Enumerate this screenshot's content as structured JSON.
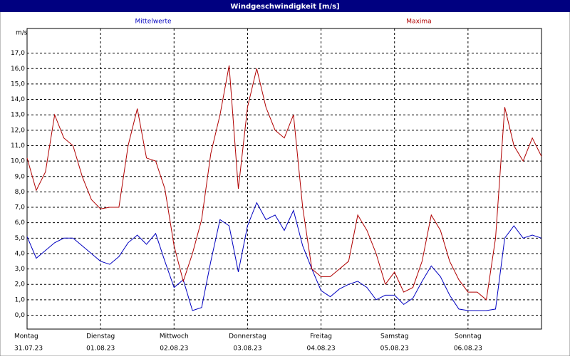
{
  "chart_data": {
    "type": "line",
    "title": "Windgeschwindigkeit [m/s]",
    "y_unit": "m/s",
    "xlim": [
      0,
      7
    ],
    "xticks": [
      {
        "value": 0,
        "label": "Montag",
        "date": "31.07.23"
      },
      {
        "value": 1,
        "label": "Dienstag",
        "date": "01.08.23"
      },
      {
        "value": 2,
        "label": "Mittwoch",
        "date": "02.08.23"
      },
      {
        "value": 3,
        "label": "Donnerstag",
        "date": "03.08.23"
      },
      {
        "value": 4,
        "label": "Freitag",
        "date": "04.08.23"
      },
      {
        "value": 5,
        "label": "Samstag",
        "date": "05.08.23"
      },
      {
        "value": 6,
        "label": "Sonntag",
        "date": "06.08.23"
      }
    ],
    "ylim": [
      -0.9,
      18.6
    ],
    "yticks": [
      {
        "value": 0,
        "label": "0,0"
      },
      {
        "value": 1,
        "label": "1,0"
      },
      {
        "value": 2,
        "label": "2,0"
      },
      {
        "value": 3,
        "label": "3,0"
      },
      {
        "value": 4,
        "label": "4,0"
      },
      {
        "value": 5,
        "label": "5,0"
      },
      {
        "value": 6,
        "label": "6,0"
      },
      {
        "value": 7,
        "label": "7,0"
      },
      {
        "value": 8,
        "label": "8,0"
      },
      {
        "value": 9,
        "label": "9,0"
      },
      {
        "value": 10,
        "label": "10,0"
      },
      {
        "value": 11,
        "label": "11,0"
      },
      {
        "value": 12,
        "label": "12,0"
      },
      {
        "value": 13,
        "label": "13,0"
      },
      {
        "value": 14,
        "label": "14,0"
      },
      {
        "value": 15,
        "label": "15,0"
      },
      {
        "value": 16,
        "label": "16,0"
      },
      {
        "value": 17,
        "label": "17,0"
      }
    ],
    "grid": true,
    "x": [
      0,
      0.125,
      0.25,
      0.375,
      0.5,
      0.625,
      0.75,
      0.875,
      1,
      1.125,
      1.25,
      1.375,
      1.5,
      1.625,
      1.75,
      1.875,
      2,
      2.125,
      2.25,
      2.375,
      2.5,
      2.625,
      2.75,
      2.875,
      3,
      3.125,
      3.25,
      3.375,
      3.5,
      3.625,
      3.75,
      3.875,
      4,
      4.125,
      4.25,
      4.375,
      4.5,
      4.625,
      4.75,
      4.875,
      5,
      5.125,
      5.25,
      5.375,
      5.5,
      5.625,
      5.75,
      5.875,
      6,
      6.125,
      6.25,
      6.375,
      6.5,
      6.625,
      6.75,
      6.875,
      7
    ],
    "series": [
      {
        "name": "Mittelwerte",
        "color": "#0000c0",
        "values": [
          5.1,
          3.7,
          4.2,
          4.7,
          5.0,
          5.0,
          4.5,
          4.0,
          3.5,
          3.3,
          3.8,
          4.7,
          5.2,
          4.6,
          5.3,
          3.5,
          1.8,
          2.3,
          0.3,
          0.5,
          3.5,
          6.2,
          5.8,
          2.8,
          5.8,
          7.3,
          6.2,
          6.5,
          5.5,
          6.8,
          4.5,
          3.0,
          1.6,
          1.2,
          1.7,
          2.0,
          2.2,
          1.8,
          1.0,
          1.3,
          1.3,
          0.7,
          1.1,
          2.2,
          3.2,
          2.5,
          1.3,
          0.4,
          0.3,
          0.3,
          0.3,
          0.4,
          5.0,
          5.8,
          5.0,
          5.2,
          5.0
        ]
      },
      {
        "name": "Maxima",
        "color": "#b00000",
        "values": [
          10.2,
          8.1,
          9.3,
          13.0,
          11.5,
          11.0,
          9.0,
          7.5,
          6.9,
          7.0,
          7.0,
          11.0,
          13.4,
          10.2,
          10.0,
          8.2,
          4.5,
          2.2,
          4.0,
          6.2,
          10.5,
          13.0,
          16.2,
          8.2,
          13.5,
          16.0,
          13.5,
          12.0,
          11.5,
          13.0,
          7.0,
          3.0,
          2.5,
          2.5,
          3.0,
          3.5,
          6.5,
          5.5,
          4.0,
          2.0,
          2.8,
          1.5,
          1.8,
          3.5,
          6.5,
          5.5,
          3.5,
          2.3,
          1.5,
          1.5,
          1.0,
          5.0,
          13.5,
          11.0,
          10.0,
          11.5,
          10.3
        ]
      }
    ]
  }
}
